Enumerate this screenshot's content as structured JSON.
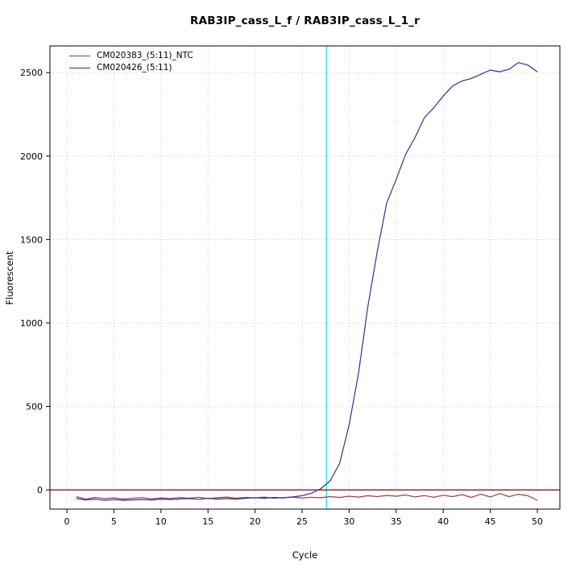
{
  "chart_data": {
    "type": "line",
    "title": "RAB3IP_cass_L_f / RAB3IP_cass_L_1_r",
    "xlabel": "Cycle",
    "ylabel": "Fluorescent",
    "xlim": [
      -1.8,
      52.4
    ],
    "ylim": [
      -115,
      2660
    ],
    "xticks": [
      0,
      5,
      10,
      15,
      20,
      25,
      30,
      35,
      40,
      45,
      50
    ],
    "yticks": [
      0,
      500,
      1000,
      1500,
      2000,
      2500
    ],
    "grid": true,
    "grid_color": "#c8c8c8",
    "legend_position": "top-left",
    "frame_color": "#000000",
    "threshold_line": {
      "y": 0,
      "color": "#8b1a1a"
    },
    "ct_line": {
      "x": 27.6,
      "color": "#00ffff"
    },
    "x": [
      1,
      2,
      3,
      4,
      5,
      6,
      7,
      8,
      9,
      10,
      11,
      12,
      13,
      14,
      15,
      16,
      17,
      18,
      19,
      20,
      21,
      22,
      23,
      24,
      25,
      26,
      27,
      28,
      29,
      30,
      31,
      32,
      33,
      34,
      35,
      36,
      37,
      38,
      39,
      40,
      41,
      42,
      43,
      44,
      45,
      46,
      47,
      48,
      49,
      50
    ],
    "series": [
      {
        "name": "CM020383_(5:11)_NTC",
        "color": "#a03c3c",
        "values": [
          -40,
          -55,
          -45,
          -52,
          -48,
          -55,
          -50,
          -46,
          -53,
          -48,
          -52,
          -46,
          -50,
          -44,
          -52,
          -47,
          -43,
          -50,
          -45,
          -48,
          -43,
          -50,
          -46,
          -43,
          -49,
          -44,
          -47,
          -40,
          -45,
          -38,
          -43,
          -35,
          -40,
          -33,
          -38,
          -30,
          -42,
          -34,
          -44,
          -32,
          -40,
          -28,
          -45,
          -25,
          -42,
          -22,
          -40,
          -26,
          -35,
          -62
        ]
      },
      {
        "name": "CM020426_(5:11)",
        "color": "#30309a",
        "values": [
          -52,
          -60,
          -55,
          -62,
          -58,
          -62,
          -60,
          -57,
          -60,
          -55,
          -58,
          -54,
          -52,
          -56,
          -50,
          -55,
          -52,
          -55,
          -50,
          -47,
          -50,
          -45,
          -48,
          -42,
          -35,
          -20,
          8,
          55,
          160,
          390,
          700,
          1100,
          1430,
          1720,
          1860,
          2010,
          2110,
          2230,
          2290,
          2360,
          2420,
          2450,
          2465,
          2490,
          2515,
          2505,
          2520,
          2560,
          2545,
          2505
        ]
      }
    ]
  }
}
